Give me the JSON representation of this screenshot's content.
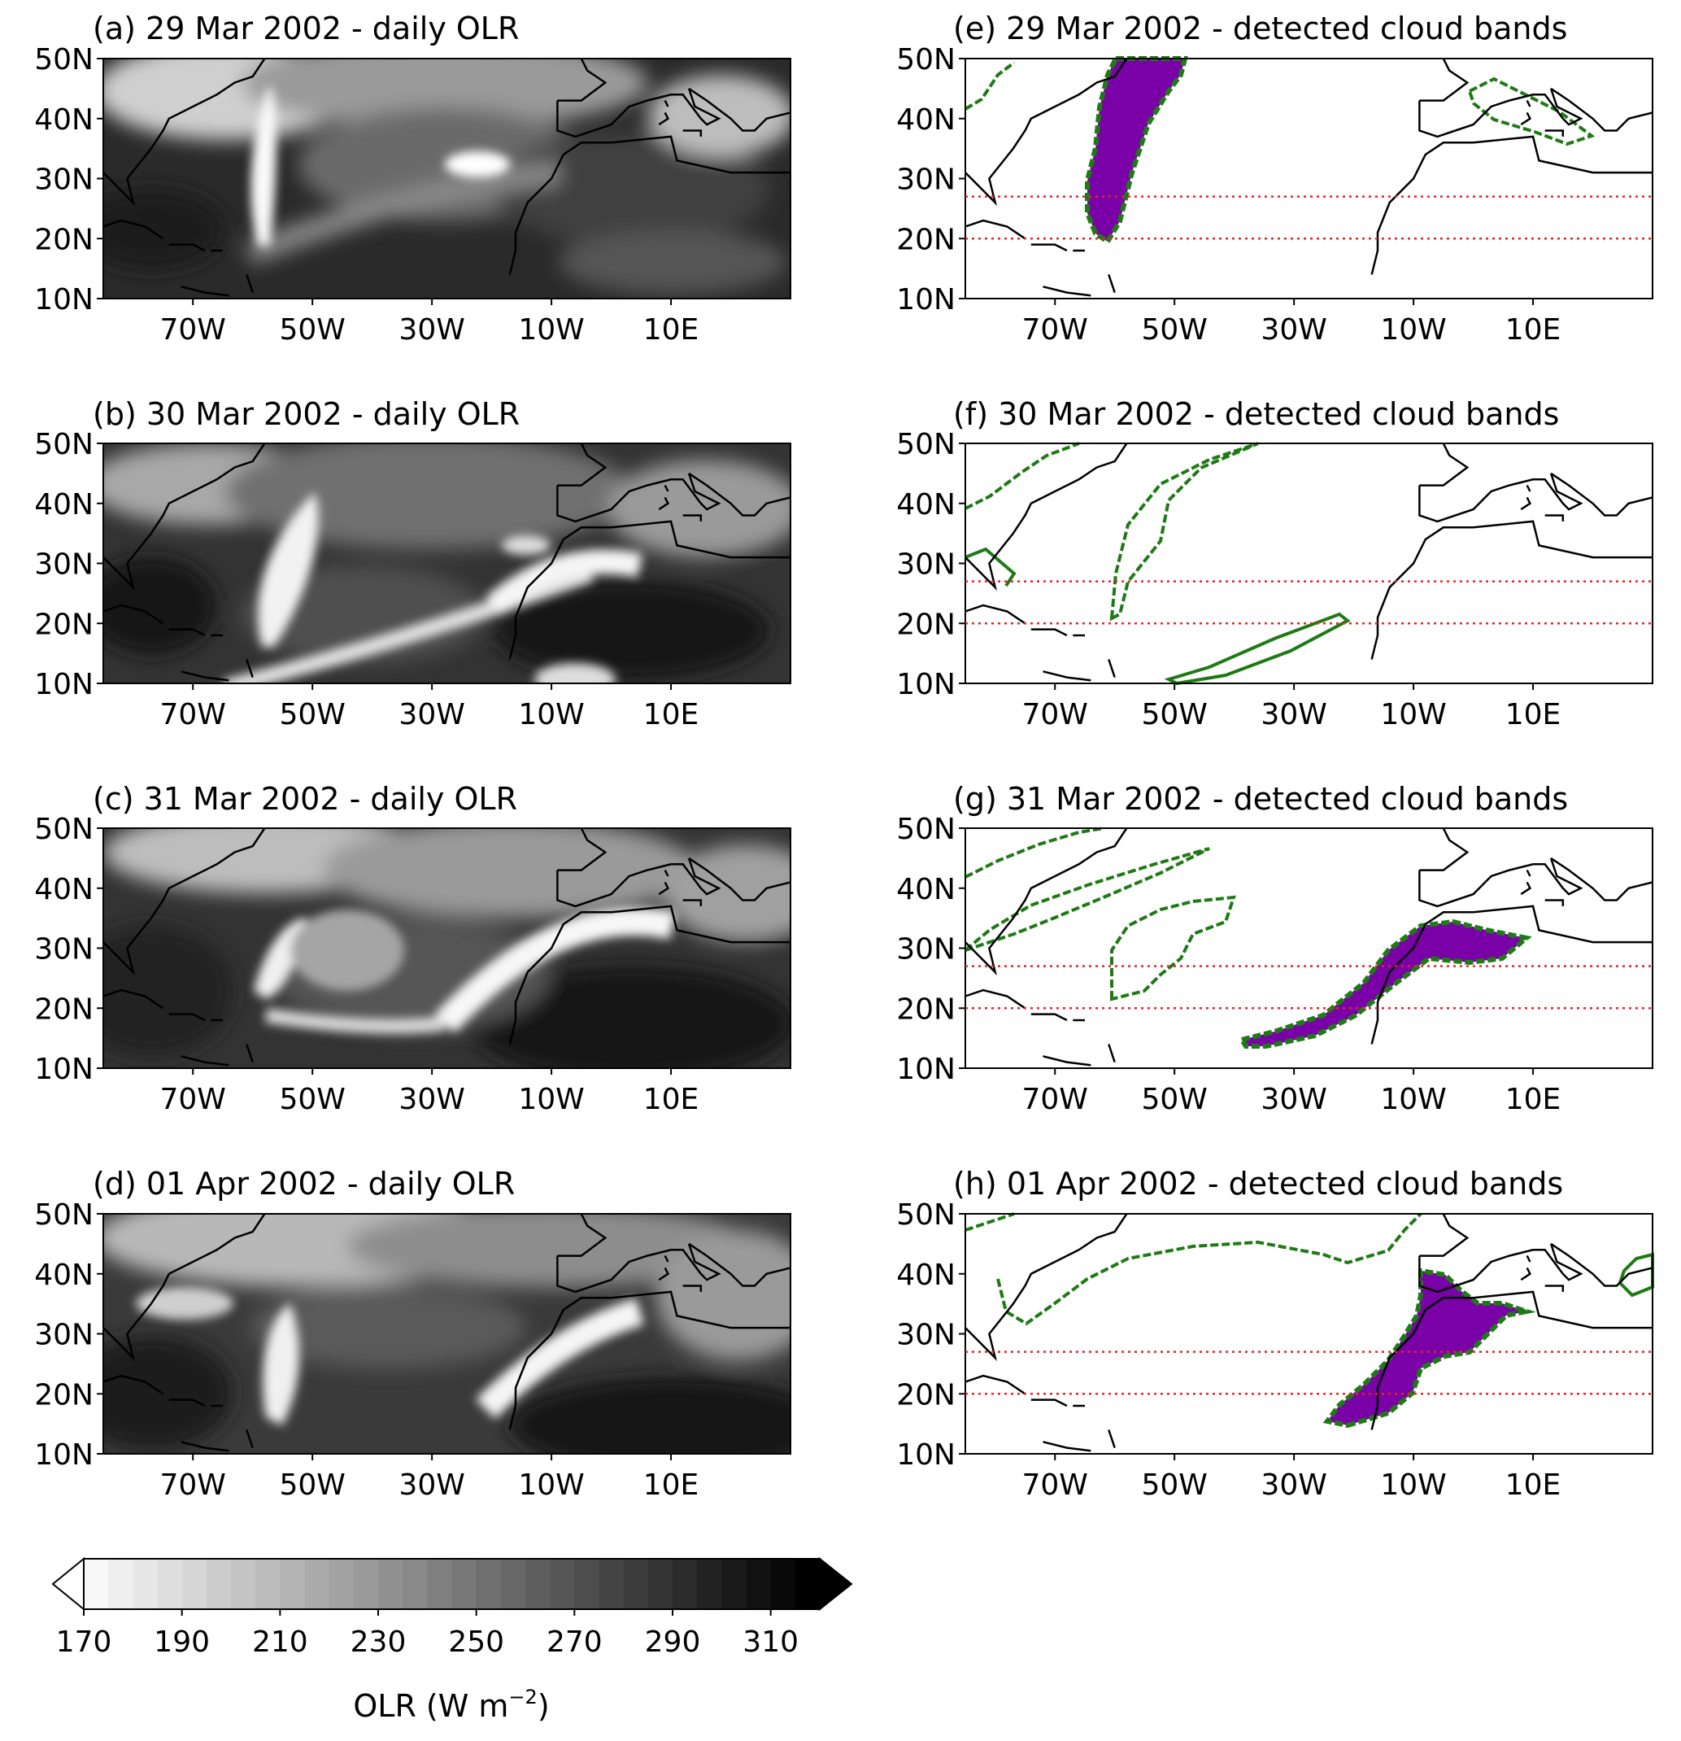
{
  "panels_olr": [
    {
      "id": "a",
      "title": "(a) 29 Mar 2002 - daily OLR"
    },
    {
      "id": "b",
      "title": "(b) 30 Mar 2002 - daily OLR"
    },
    {
      "id": "c",
      "title": "(c) 31 Mar 2002 - daily OLR"
    },
    {
      "id": "d",
      "title": "(d) 01 Apr 2002 - daily OLR"
    }
  ],
  "panels_bands": [
    {
      "id": "e",
      "title": "(e) 29 Mar 2002 - detected cloud bands"
    },
    {
      "id": "f",
      "title": "(f) 30 Mar 2002 - detected cloud bands"
    },
    {
      "id": "g",
      "title": "(g) 31 Mar 2002 - detected cloud bands"
    },
    {
      "id": "h",
      "title": "(h) 01 Apr 2002 - detected cloud bands"
    }
  ],
  "map": {
    "lon_range": [
      -85,
      30
    ],
    "lat_range": [
      10,
      50
    ],
    "lat_ticks": [
      {
        "v": 50,
        "t": "50N"
      },
      {
        "v": 40,
        "t": "40N"
      },
      {
        "v": 30,
        "t": "30N"
      },
      {
        "v": 20,
        "t": "20N"
      },
      {
        "v": 10,
        "t": "10N"
      }
    ],
    "lon_ticks": [
      {
        "v": -70,
        "t": "70W"
      },
      {
        "v": -50,
        "t": "50W"
      },
      {
        "v": -30,
        "t": "30W"
      },
      {
        "v": -10,
        "t": "10W"
      },
      {
        "v": 10,
        "t": "10E"
      }
    ],
    "reference_lats": [
      27,
      20
    ],
    "reference_line_color": "#e8232a",
    "band_fill_color": "#7a00a8",
    "band_edge_color": "#1e7a14",
    "coast_color": "#000000"
  },
  "colorbar": {
    "min": 170,
    "max": 320,
    "step": 5,
    "ticks": [
      "170",
      "190",
      "210",
      "230",
      "250",
      "270",
      "290",
      "310"
    ],
    "tick_values": [
      170,
      190,
      210,
      230,
      250,
      270,
      290,
      310
    ],
    "label": "OLR (W m",
    "label_sup": "−2",
    "label_end": ")",
    "extend": "both",
    "cmap": "gray_r"
  }
}
